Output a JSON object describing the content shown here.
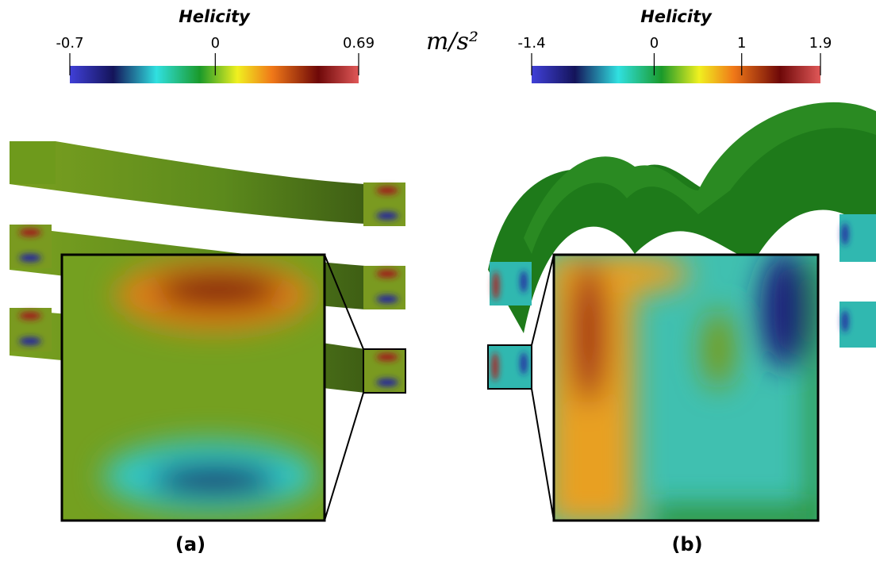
{
  "colorbars": [
    {
      "title": "Helicity",
      "ticks": [
        -0.7,
        0,
        0.69
      ]
    },
    {
      "title": "Helicity",
      "ticks": [
        -1.4,
        0,
        1,
        1.9
      ]
    }
  ],
  "unit": "m/s²",
  "captions": [
    "(a)",
    "(b)"
  ]
}
